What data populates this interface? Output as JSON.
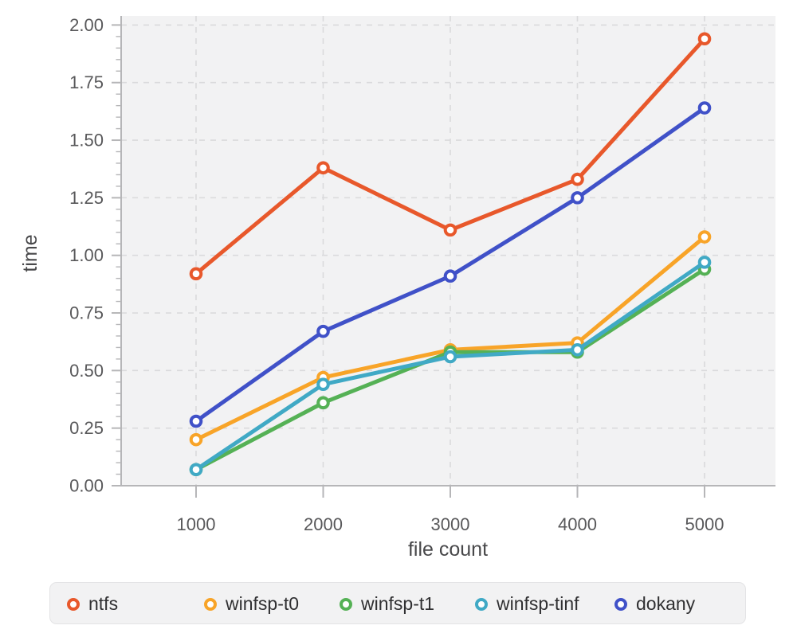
{
  "chart_data": {
    "type": "line",
    "title": "",
    "xlabel": "file count",
    "ylabel": "time",
    "x": [
      1000,
      2000,
      3000,
      4000,
      5000
    ],
    "xtick_labels": [
      "1000",
      "2000",
      "3000",
      "4000",
      "5000"
    ],
    "ytick_labels": [
      "0.00",
      "0.25",
      "0.50",
      "0.75",
      "1.00",
      "1.25",
      "1.50",
      "1.75",
      "2.00"
    ],
    "ylim": [
      0,
      2
    ],
    "ytick_step": 0.25,
    "y_minor_tick_step": 0.05,
    "grid": "dashed horizontal and vertical",
    "legend_position": "bottom",
    "series": [
      {
        "name": "ntfs",
        "color": "#e8582b",
        "values": [
          0.92,
          1.38,
          1.11,
          1.33,
          1.94
        ]
      },
      {
        "name": "winfsp-t0",
        "color": "#f8a428",
        "values": [
          0.2,
          0.47,
          0.59,
          0.62,
          1.08
        ]
      },
      {
        "name": "winfsp-t1",
        "color": "#55b155",
        "values": [
          0.07,
          0.36,
          0.58,
          0.58,
          0.94
        ]
      },
      {
        "name": "winfsp-tinf",
        "color": "#40a9c5",
        "values": [
          0.07,
          0.44,
          0.56,
          0.59,
          0.97
        ]
      },
      {
        "name": "dokany",
        "color": "#4051c8",
        "values": [
          0.28,
          0.67,
          0.91,
          1.25,
          1.64
        ]
      }
    ]
  },
  "style": {
    "plot_bg": "#f2f2f3",
    "grid_color": "#dadadc",
    "axis_color": "#b6b6b8",
    "tick_label_color": "#58585a",
    "axis_label_color": "#48484a",
    "legend_bg": "#f2f2f3",
    "legend_border": "#e3e3e5",
    "legend_text_color": "#303032"
  }
}
